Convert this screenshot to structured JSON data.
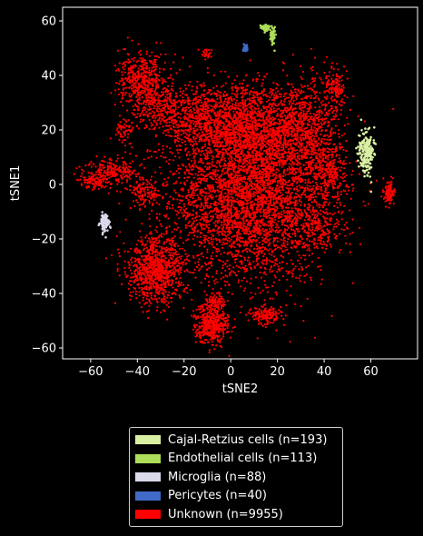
{
  "chart_data": {
    "type": "scatter",
    "title": "",
    "xlabel": "tSNE2",
    "ylabel": "tSNE1",
    "xlim": [
      -72,
      80
    ],
    "ylim": [
      -64,
      65
    ],
    "xticks": [
      -60,
      -40,
      -20,
      0,
      20,
      40,
      60
    ],
    "yticks": [
      -60,
      -40,
      -20,
      0,
      20,
      40,
      60
    ],
    "grid": false,
    "legend_position": "bottom-center",
    "background": "#000000",
    "series": [
      {
        "name": "Cajal-Retzius cells (n=193)",
        "color": "#d9f0a3",
        "clusters": [
          {
            "cx": 58,
            "cy": 12,
            "sx": 1.6,
            "sy": 4,
            "n": 193
          }
        ]
      },
      {
        "name": "Endothelial cells (n=113)",
        "color": "#addd5a",
        "clusters": [
          {
            "cx": 15,
            "cy": 57.5,
            "sx": 1.3,
            "sy": 0.6,
            "n": 60
          },
          {
            "cx": 18,
            "cy": 54.5,
            "sx": 0.5,
            "sy": 1.8,
            "n": 53
          }
        ]
      },
      {
        "name": "Microglia (n=88)",
        "color": "#dadaeb",
        "clusters": [
          {
            "cx": -54,
            "cy": -14,
            "sx": 1,
            "sy": 1.6,
            "n": 88
          }
        ]
      },
      {
        "name": "Pericytes (n=40)",
        "color": "#4169c8",
        "clusters": [
          {
            "cx": 6.5,
            "cy": 50,
            "sx": 0.45,
            "sy": 0.5,
            "n": 40
          }
        ]
      },
      {
        "name": "Unknown (n=9955)",
        "color": "#ff0000",
        "clusters": [
          {
            "cx": 8,
            "cy": -5,
            "sx": 17,
            "sy": 15,
            "n": 3800
          },
          {
            "cx": 28,
            "cy": 20,
            "sx": 9,
            "sy": 9,
            "n": 1100
          },
          {
            "cx": 7,
            "cy": 22,
            "sx": 7,
            "sy": 8,
            "n": 700
          },
          {
            "cx": -10,
            "cy": 23,
            "sx": 9,
            "sy": 7,
            "n": 800
          },
          {
            "cx": -38,
            "cy": 38,
            "sx": 5,
            "sy": 5,
            "n": 450
          },
          {
            "cx": -30,
            "cy": 29,
            "sx": 6,
            "sy": 5,
            "n": 300
          },
          {
            "cx": -50,
            "cy": 5,
            "sx": 6,
            "sy": 2.5,
            "n": 220
          },
          {
            "cx": -57,
            "cy": 1,
            "sx": 4,
            "sy": 1.5,
            "n": 90
          },
          {
            "cx": -37,
            "cy": -3,
            "sx": 3.5,
            "sy": 2.5,
            "n": 120
          },
          {
            "cx": -45,
            "cy": 20,
            "sx": 2,
            "sy": 2,
            "n": 60
          },
          {
            "cx": -32,
            "cy": -32,
            "sx": 6,
            "sy": 6,
            "n": 900
          },
          {
            "cx": -8,
            "cy": -51,
            "sx": 3.5,
            "sy": 3.5,
            "n": 450
          },
          {
            "cx": -7,
            "cy": -43,
            "sx": 2,
            "sy": 1.5,
            "n": 80
          },
          {
            "cx": 15,
            "cy": -48,
            "sx": 3,
            "sy": 1.4,
            "n": 150
          },
          {
            "cx": 68,
            "cy": -3,
            "sx": 1.1,
            "sy": 2.2,
            "n": 120
          },
          {
            "cx": 42,
            "cy": 5,
            "sx": 4,
            "sy": 5,
            "n": 250
          },
          {
            "cx": 45,
            "cy": 35,
            "sx": 2.5,
            "sy": 4,
            "n": 140
          },
          {
            "cx": -10,
            "cy": 48,
            "sx": 1,
            "sy": 1,
            "n": 25
          },
          {
            "cx": 37,
            "cy": -15,
            "sx": 5,
            "sy": 5,
            "n": 200
          }
        ]
      }
    ],
    "legend": [
      {
        "label": "Cajal-Retzius cells (n=193)",
        "color": "#d9f0a3"
      },
      {
        "label": "Endothelial cells (n=113)",
        "color": "#addd5a"
      },
      {
        "label": "Microglia (n=88)",
        "color": "#dadaeb"
      },
      {
        "label": "Pericytes (n=40)",
        "color": "#4169c8"
      },
      {
        "label": "Unknown (n=9955)",
        "color": "#ff0000"
      }
    ]
  }
}
